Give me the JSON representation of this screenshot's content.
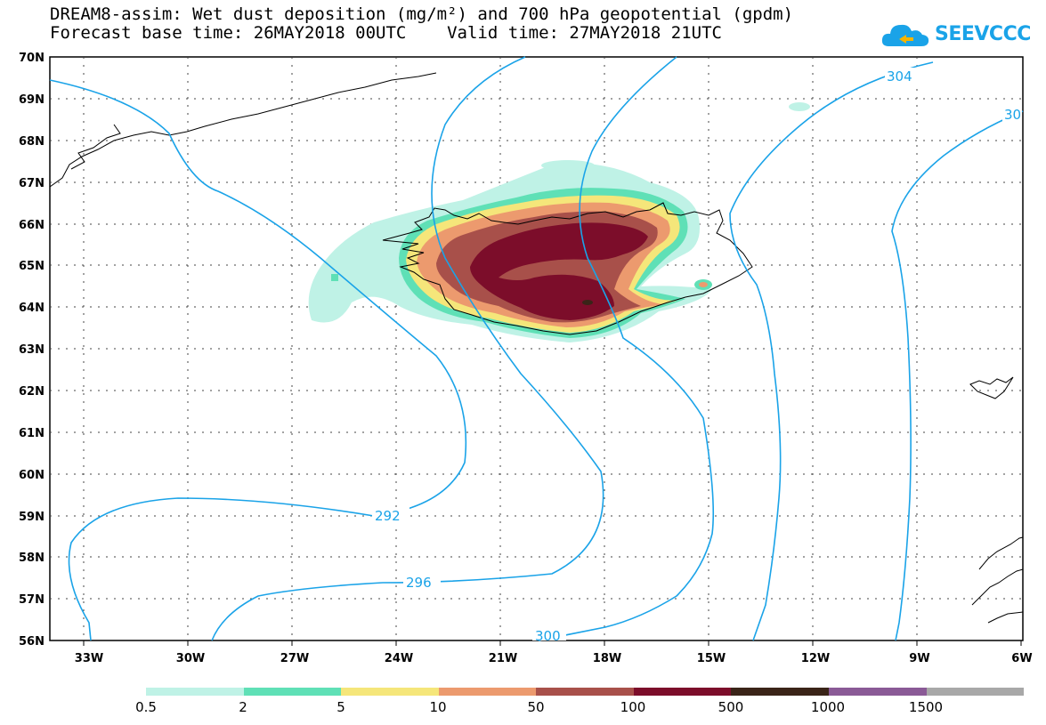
{
  "title": {
    "line1": "DREAM8-assim: Wet dust deposition (mg/m²) and 700 hPa geopotential (gpdm)",
    "line2": "Forecast base time: 26MAY2018 00UTC    Valid time: 27MAY2018 21UTC"
  },
  "logo": {
    "text": "SEEVCCC",
    "icon": "cloud-icon",
    "color": "#1aa3e8"
  },
  "axes": {
    "lat_labels": [
      "70N",
      "69N",
      "68N",
      "67N",
      "66N",
      "65N",
      "64N",
      "63N",
      "62N",
      "61N",
      "60N",
      "59N",
      "58N",
      "57N",
      "56N"
    ],
    "lon_labels": [
      "33W",
      "30W",
      "27W",
      "24W",
      "21W",
      "18W",
      "15W",
      "12W",
      "9W",
      "6W"
    ]
  },
  "contours": {
    "color": "#1aa3e8",
    "labels": [
      "292",
      "296",
      "300",
      "304",
      "30"
    ]
  },
  "legend": {
    "colors": [
      "#bff2e6",
      "#5fe0b6",
      "#f5e67a",
      "#ec9a6e",
      "#a8504a",
      "#7c0d2a",
      "#3a2418",
      "#8a5a96",
      "#a8a8a8"
    ],
    "labels": [
      "0.5",
      "2",
      "5",
      "10",
      "50",
      "100",
      "500",
      "1000",
      "1500"
    ]
  }
}
